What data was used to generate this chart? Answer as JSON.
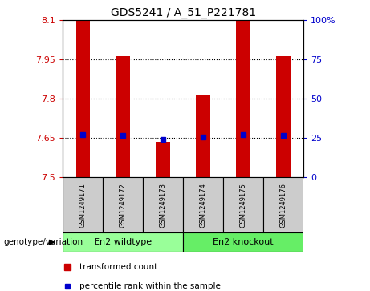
{
  "title": "GDS5241 / A_51_P221781",
  "samples": [
    "GSM1249171",
    "GSM1249172",
    "GSM1249173",
    "GSM1249174",
    "GSM1249175",
    "GSM1249176"
  ],
  "red_bar_tops": [
    8.1,
    7.965,
    7.635,
    7.815,
    8.1,
    7.965
  ],
  "blue_square_y": [
    7.665,
    7.66,
    7.645,
    7.655,
    7.665,
    7.66
  ],
  "y_min": 7.5,
  "y_max": 8.1,
  "y_ticks": [
    7.5,
    7.65,
    7.8,
    7.95,
    8.1
  ],
  "y_tick_labels": [
    "7.5",
    "7.65",
    "7.8",
    "7.95",
    "8.1"
  ],
  "right_y_ticks": [
    0,
    25,
    50,
    75,
    100
  ],
  "right_y_tick_labels": [
    "0",
    "25",
    "50",
    "75",
    "100%"
  ],
  "group1_label": "En2 wildtype",
  "group2_label": "En2 knockout",
  "genotype_label": "genotype/variation",
  "legend_red_label": "transformed count",
  "legend_blue_label": "percentile rank within the sample",
  "red_color": "#cc0000",
  "blue_color": "#0000cc",
  "bar_width": 0.35,
  "group1_color": "#99ff99",
  "group2_color": "#66ee66",
  "sample_box_color": "#cccccc",
  "left_tick_color": "#cc0000",
  "right_tick_color": "#0000cc",
  "sample_label_fontsize": 6.0,
  "group_label_fontsize": 8,
  "title_fontsize": 10,
  "legend_fontsize": 7.5,
  "genotype_fontsize": 7.5
}
